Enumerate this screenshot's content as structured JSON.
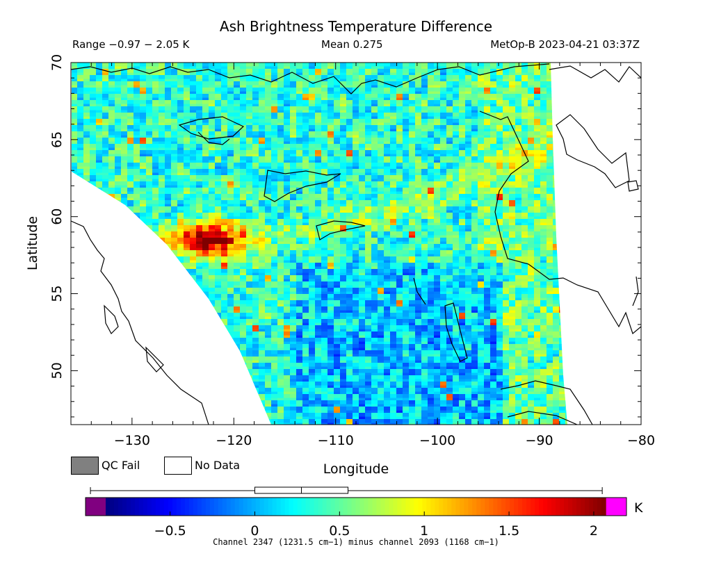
{
  "chart_data": {
    "type": "heatmap",
    "title": "Ash Brightness Temperature Difference",
    "header": {
      "range": "Range −0.97 − 2.05 K",
      "mean": "Mean 0.275",
      "satellite": "MetOp-B 2023-04-21 03:37Z"
    },
    "xlabel": "Longitude",
    "ylabel": "Latitude",
    "xlim": [
      -136,
      -80
    ],
    "ylim": [
      46.5,
      70
    ],
    "x_ticks": [
      {
        "value": -130,
        "label": "−130"
      },
      {
        "value": -120,
        "label": "−120"
      },
      {
        "value": -110,
        "label": "−110"
      },
      {
        "value": -100,
        "label": "−100"
      },
      {
        "value": -90,
        "label": "−90"
      },
      {
        "value": -80,
        "label": "−80"
      }
    ],
    "y_ticks": [
      {
        "value": 50,
        "label": "50"
      },
      {
        "value": 55,
        "label": "55"
      },
      {
        "value": 60,
        "label": "60"
      },
      {
        "value": 65,
        "label": "65"
      },
      {
        "value": 70,
        "label": "70"
      }
    ],
    "colorbar": {
      "vmin": -0.88,
      "vmax": 2.07,
      "unit": "K",
      "ticks": [
        {
          "value": -0.5,
          "label": "−0.5"
        },
        {
          "value": 0,
          "label": "0"
        },
        {
          "value": 0.5,
          "label": "0.5"
        },
        {
          "value": 1,
          "label": "1"
        },
        {
          "value": 1.5,
          "label": "1.5"
        },
        {
          "value": 2,
          "label": "2"
        }
      ],
      "under_color": "#800080",
      "over_color": "#ff00ff",
      "stops": [
        "#00007f",
        "#0000ff",
        "#0080ff",
        "#00ffff",
        "#80ff80",
        "#ffff00",
        "#ff8000",
        "#ff0000",
        "#7f0000"
      ]
    },
    "features": [
      {
        "name": "elevated BTD band",
        "lon": -122.5,
        "lat": 58.5,
        "value": 2.0
      }
    ],
    "mean": 0.275,
    "range_min": -0.97,
    "range_max": 2.05
  },
  "legend": {
    "qc_fail": {
      "label": "QC Fail",
      "color": "#808080"
    },
    "no_data": {
      "label": "No Data",
      "color": "#ffffff"
    }
  },
  "footnote": "Channel 2347 (1231.5 cm−1) minus channel 2093 (1168 cm−1)"
}
